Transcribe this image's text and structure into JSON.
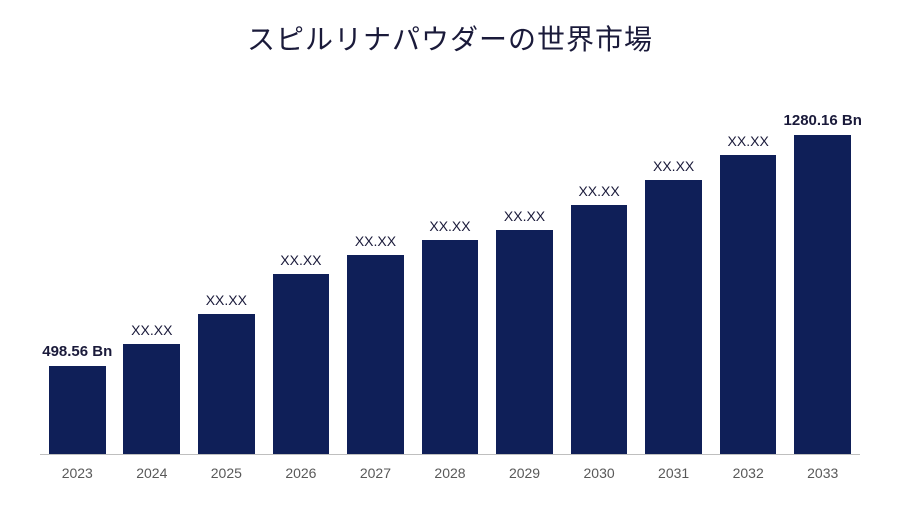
{
  "chart": {
    "type": "bar",
    "title": "スピルリナパウダーの世界市場",
    "title_fontsize": 28,
    "title_color": "#1a1a3a",
    "background_color": "#ffffff",
    "bar_color": "#0f1f58",
    "axis_line_color": "#bfbfbf",
    "x_label_color": "#595959",
    "x_label_fontsize": 14,
    "value_label_fontsize": 14,
    "bold_label_fontsize": 15,
    "bar_width_ratio": 0.76,
    "categories": [
      "2023",
      "2024",
      "2025",
      "2026",
      "2027",
      "2028",
      "2029",
      "2030",
      "2031",
      "2032",
      "2033"
    ],
    "values_relative": [
      88,
      110,
      140,
      180,
      200,
      215,
      225,
      250,
      275,
      300,
      320
    ],
    "ymax": 375,
    "labels": [
      "498.56 Bn",
      "XX.XX",
      "XX.XX",
      "XX.XX",
      "XX.XX",
      "XX.XX",
      "XX.XX",
      "XX.XX",
      "XX.XX",
      "XX.XX",
      "1280.16 Bn"
    ],
    "label_bold": [
      true,
      false,
      false,
      false,
      false,
      false,
      false,
      false,
      false,
      false,
      true
    ]
  }
}
